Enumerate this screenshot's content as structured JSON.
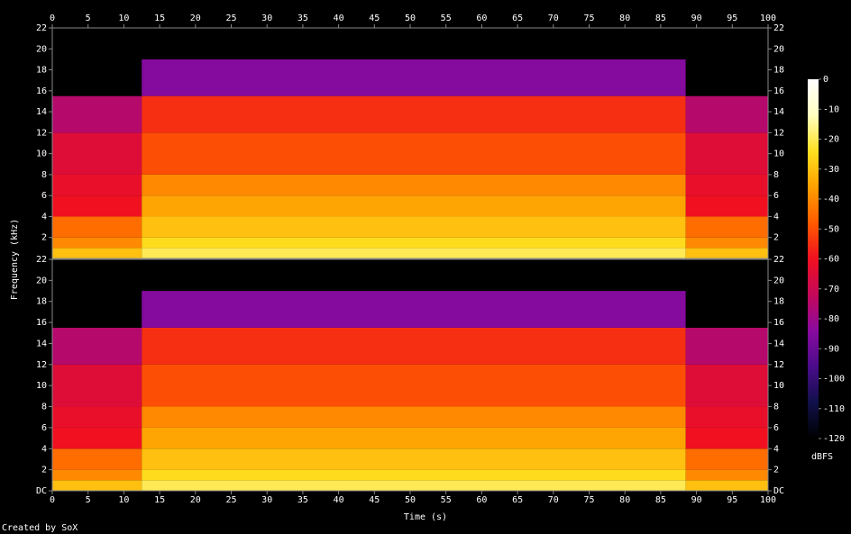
{
  "chart_data": {
    "type": "spectrogram",
    "xlabel": "Time (s)",
    "ylabel": "Frequency (kHz)",
    "colorbar_label": "dBFS",
    "credit": "Created by SoX",
    "xlim": [
      0,
      100
    ],
    "xticks": [
      0,
      5,
      10,
      15,
      20,
      25,
      30,
      35,
      40,
      45,
      50,
      55,
      60,
      65,
      70,
      75,
      80,
      85,
      90,
      95,
      100
    ],
    "ylim": [
      0,
      22
    ],
    "clim": [
      -120,
      0
    ],
    "cticks": [
      0,
      -10,
      -20,
      -30,
      -40,
      -50,
      -60,
      -70,
      -80,
      -90,
      -100,
      -110,
      -120
    ],
    "colormap": [
      "#000000",
      "#10104a",
      "#4a0c8a",
      "#8a0aa0",
      "#c4085a",
      "#f01020",
      "#ff5a00",
      "#ffa000",
      "#ffe020",
      "#ffffc0",
      "#ffffff"
    ],
    "x_edges": [
      0,
      12.5,
      88.5,
      100
    ],
    "freq_edges": [
      0,
      1,
      2,
      4,
      6,
      8,
      12,
      15.5,
      19,
      22
    ],
    "channels": [
      {
        "yticks": [
          2,
          4,
          6,
          8,
          10,
          12,
          14,
          16,
          18,
          20,
          22
        ],
        "z": [
          [
            -30,
            -40,
            -45,
            -60,
            -62,
            -65,
            -75,
            -120,
            -120
          ],
          [
            -20,
            -25,
            -30,
            -35,
            -40,
            -50,
            -55,
            -85,
            -120
          ],
          [
            -30,
            -40,
            -45,
            -60,
            -62,
            -65,
            -75,
            -120,
            -120
          ]
        ]
      },
      {
        "yticks": [
          {
            "value": 0,
            "label": "DC"
          },
          2,
          4,
          6,
          8,
          10,
          12,
          14,
          16,
          18,
          20,
          22
        ],
        "z": [
          [
            -30,
            -40,
            -45,
            -60,
            -62,
            -65,
            -75,
            -120,
            -120
          ],
          [
            -20,
            -25,
            -30,
            -35,
            -40,
            -50,
            -55,
            -85,
            -120
          ],
          [
            -30,
            -40,
            -45,
            -60,
            -62,
            -65,
            -75,
            -120,
            -120
          ]
        ]
      }
    ]
  }
}
